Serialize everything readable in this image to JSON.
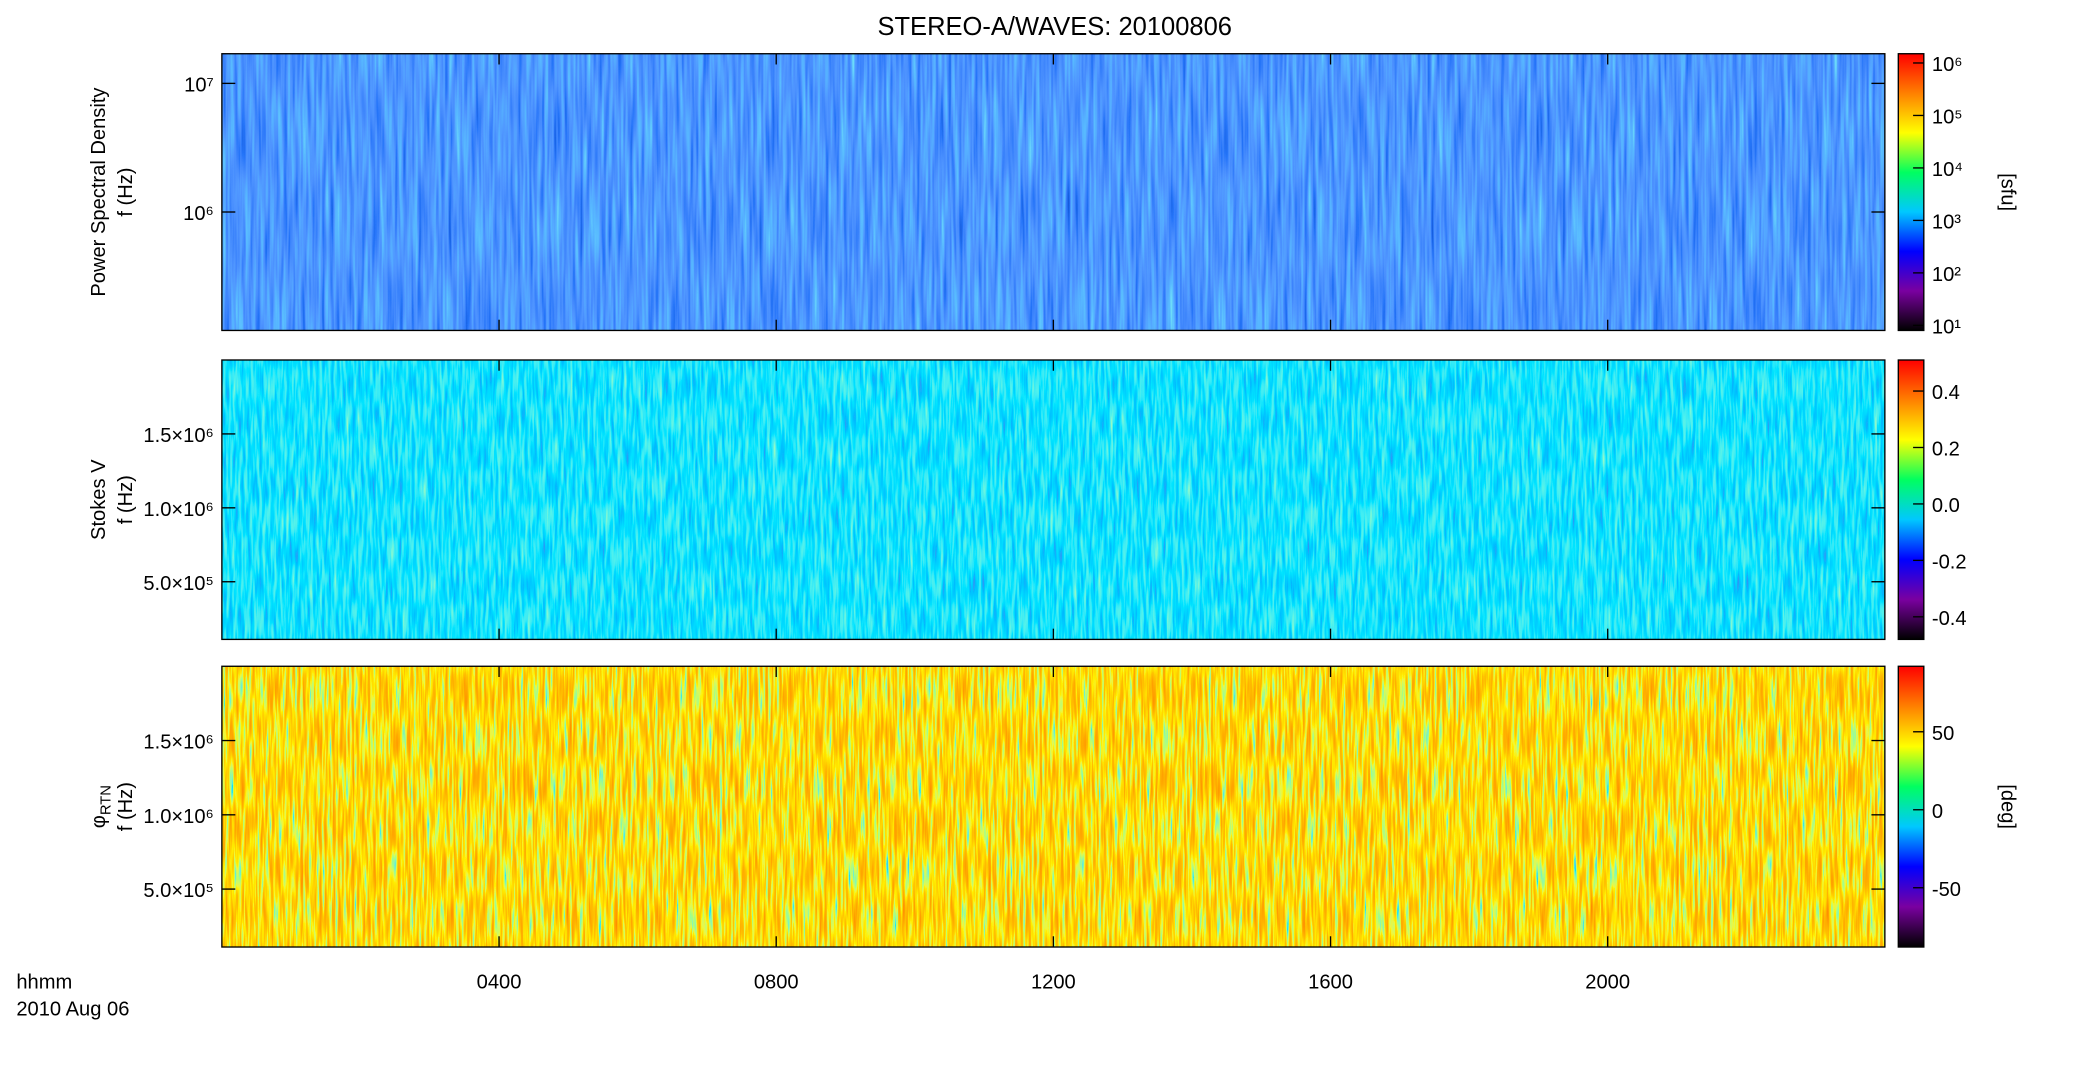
{
  "title": "STEREO-A/WAVES: 20100806",
  "x_label": "hhmm",
  "x_sublabel": "2010 Aug 06",
  "colormap": [
    "#000000",
    "#7a00a0",
    "#0000ff",
    "#00c8ff",
    "#00ff60",
    "#ffff00",
    "#ff8000",
    "#ff0000"
  ],
  "chart_data": [
    {
      "type": "heatmap",
      "ylabel": "Power Spectral Density",
      "ylabel2": "f (Hz)",
      "xlim": [
        0,
        24
      ],
      "ylim": [
        120000,
        17000000
      ],
      "yscale": "log",
      "yticks": [
        {
          "value": 1000000,
          "label": "10⁶"
        },
        {
          "value": 10000000,
          "label": "10⁷"
        }
      ],
      "clim": [
        8,
        1500000
      ],
      "cscale": "log",
      "cticks": [
        {
          "value": 10,
          "label": "10¹"
        },
        {
          "value": 100,
          "label": "10²"
        },
        {
          "value": 1000,
          "label": "10³"
        },
        {
          "value": 10000,
          "label": "10⁴"
        },
        {
          "value": 100000,
          "label": "10⁵"
        },
        {
          "value": 1000000,
          "label": "10⁶"
        }
      ],
      "clabel": "[sfu]"
    },
    {
      "type": "heatmap",
      "ylabel": "Stokes V",
      "ylabel2": "f (Hz)",
      "xlim": [
        0,
        24
      ],
      "ylim": [
        110000,
        2000000
      ],
      "yticks": [
        {
          "value": 500000,
          "label": "5.0×10⁵"
        },
        {
          "value": 1000000,
          "label": "1.0×10⁶"
        },
        {
          "value": 1500000,
          "label": "1.5×10⁶"
        }
      ],
      "clim": [
        -0.48,
        0.51
      ],
      "cticks": [
        {
          "value": -0.4,
          "label": "-0.4"
        },
        {
          "value": -0.2,
          "label": "-0.2"
        },
        {
          "value": 0,
          "label": "0.0"
        },
        {
          "value": 0.2,
          "label": "0.2"
        },
        {
          "value": 0.4,
          "label": "0.4"
        }
      ]
    },
    {
      "type": "heatmap",
      "ylabel": "φ",
      "ylabel_sub": "RTN",
      "ylabel2": "f (Hz)",
      "xlim": [
        0,
        24
      ],
      "xticks": [
        {
          "value": 4,
          "label": "0400"
        },
        {
          "value": 8,
          "label": "0800"
        },
        {
          "value": 12,
          "label": "1200"
        },
        {
          "value": 16,
          "label": "1600"
        },
        {
          "value": 20,
          "label": "2000"
        }
      ],
      "ylim": [
        110000,
        2000000
      ],
      "yticks": [
        {
          "value": 500000,
          "label": "5.0×10⁵"
        },
        {
          "value": 1000000,
          "label": "1.0×10⁶"
        },
        {
          "value": 1500000,
          "label": "1.5×10⁶"
        }
      ],
      "clim": [
        -88,
        92
      ],
      "cticks": [
        -50,
        0,
        50
      ],
      "clabel": "[deg]"
    }
  ]
}
